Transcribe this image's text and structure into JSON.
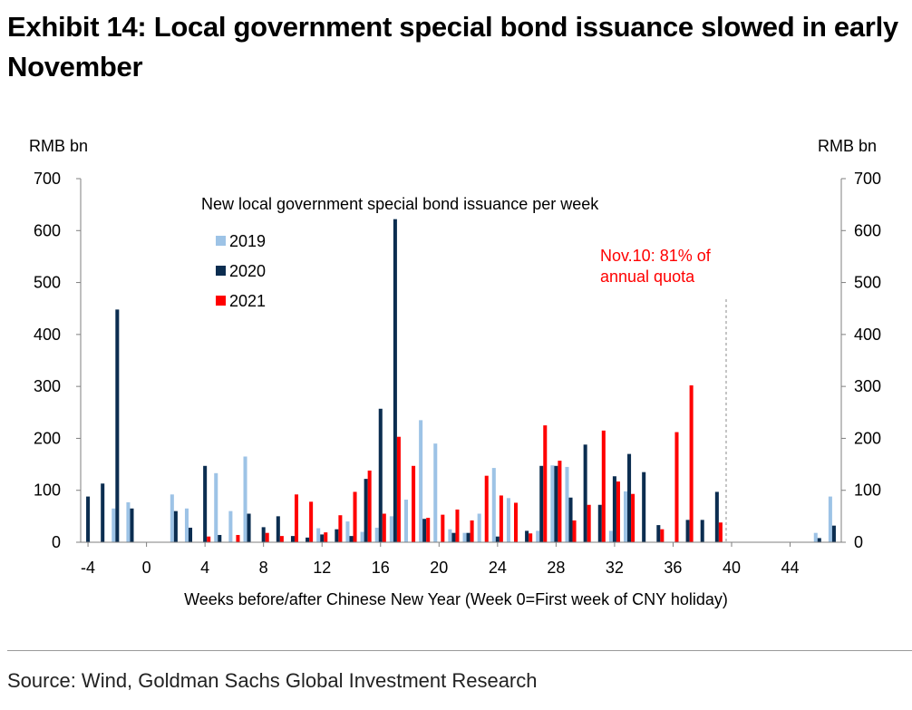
{
  "exhibit_title": "Exhibit 14: Local government special bond issuance slowed in early November",
  "source": "Source: Wind, Goldman Sachs Global Investment Research",
  "chart_data": {
    "type": "bar",
    "title": "New local government special bond issuance per week",
    "xlabel": "Weeks before/after Chinese New Year (Week 0=First week of CNY holiday)",
    "ylabel_left": "RMB bn",
    "ylabel_right": "RMB bn",
    "ylim": [
      0,
      700
    ],
    "yticks": [
      0,
      100,
      200,
      300,
      400,
      500,
      600,
      700
    ],
    "xlim": [
      -4.5,
      47.5
    ],
    "xticks": [
      -4,
      0,
      4,
      8,
      12,
      16,
      20,
      24,
      28,
      32,
      36,
      40,
      44
    ],
    "annotation": {
      "lines": [
        "Nov.10: 81% of",
        "annual quota"
      ],
      "week": 40,
      "color": "#ff0000"
    },
    "series": [
      {
        "name": "2019",
        "color": "#9dc3e6",
        "points": [
          [
            -2,
            65
          ],
          [
            -1,
            77
          ],
          [
            2,
            92
          ],
          [
            3,
            65
          ],
          [
            4,
            0
          ],
          [
            5,
            133
          ],
          [
            6,
            60
          ],
          [
            7,
            165
          ],
          [
            8,
            0
          ],
          [
            9,
            0
          ],
          [
            10,
            0
          ],
          [
            11,
            0
          ],
          [
            12,
            27
          ],
          [
            13,
            0
          ],
          [
            14,
            40
          ],
          [
            15,
            20
          ],
          [
            16,
            28
          ],
          [
            17,
            50
          ],
          [
            18,
            82
          ],
          [
            19,
            235
          ],
          [
            20,
            190
          ],
          [
            21,
            25
          ],
          [
            22,
            18
          ],
          [
            23,
            55
          ],
          [
            24,
            143
          ],
          [
            25,
            85
          ],
          [
            26,
            0
          ],
          [
            27,
            22
          ],
          [
            28,
            148
          ],
          [
            29,
            145
          ],
          [
            30,
            0
          ],
          [
            31,
            0
          ],
          [
            32,
            22
          ],
          [
            33,
            98
          ],
          [
            46,
            18
          ],
          [
            47,
            88
          ]
        ]
      },
      {
        "name": "2020",
        "color": "#0b2d50",
        "points": [
          [
            -4,
            88
          ],
          [
            -3,
            113
          ],
          [
            -2,
            448
          ],
          [
            -1,
            65
          ],
          [
            2,
            60
          ],
          [
            3,
            28
          ],
          [
            4,
            147
          ],
          [
            5,
            14
          ],
          [
            7,
            55
          ],
          [
            8,
            29
          ],
          [
            9,
            50
          ],
          [
            10,
            12
          ],
          [
            11,
            9
          ],
          [
            12,
            15
          ],
          [
            13,
            25
          ],
          [
            14,
            12
          ],
          [
            15,
            122
          ],
          [
            16,
            257
          ],
          [
            17,
            622
          ],
          [
            19,
            45
          ],
          [
            21,
            18
          ],
          [
            22,
            18
          ],
          [
            24,
            11
          ],
          [
            26,
            22
          ],
          [
            27,
            147
          ],
          [
            28,
            147
          ],
          [
            29,
            86
          ],
          [
            30,
            188
          ],
          [
            31,
            72
          ],
          [
            32,
            127
          ],
          [
            33,
            170
          ],
          [
            34,
            135
          ],
          [
            35,
            33
          ],
          [
            36,
            0
          ],
          [
            37,
            43
          ],
          [
            38,
            43
          ],
          [
            39,
            97
          ],
          [
            46,
            8
          ],
          [
            47,
            32
          ]
        ]
      },
      {
        "name": "2021",
        "color": "#ff0000",
        "points": [
          [
            4,
            11
          ],
          [
            6,
            14
          ],
          [
            8,
            18
          ],
          [
            9,
            12
          ],
          [
            10,
            92
          ],
          [
            11,
            78
          ],
          [
            12,
            19
          ],
          [
            13,
            52
          ],
          [
            14,
            97
          ],
          [
            15,
            138
          ],
          [
            16,
            55
          ],
          [
            17,
            203
          ],
          [
            18,
            147
          ],
          [
            19,
            47
          ],
          [
            20,
            53
          ],
          [
            21,
            63
          ],
          [
            22,
            42
          ],
          [
            23,
            128
          ],
          [
            24,
            90
          ],
          [
            25,
            76
          ],
          [
            26,
            17
          ],
          [
            27,
            225
          ],
          [
            28,
            157
          ],
          [
            29,
            42
          ],
          [
            30,
            72
          ],
          [
            31,
            215
          ],
          [
            32,
            117
          ],
          [
            33,
            93
          ],
          [
            35,
            25
          ],
          [
            36,
            212
          ],
          [
            37,
            302
          ],
          [
            39,
            38
          ]
        ]
      }
    ]
  }
}
